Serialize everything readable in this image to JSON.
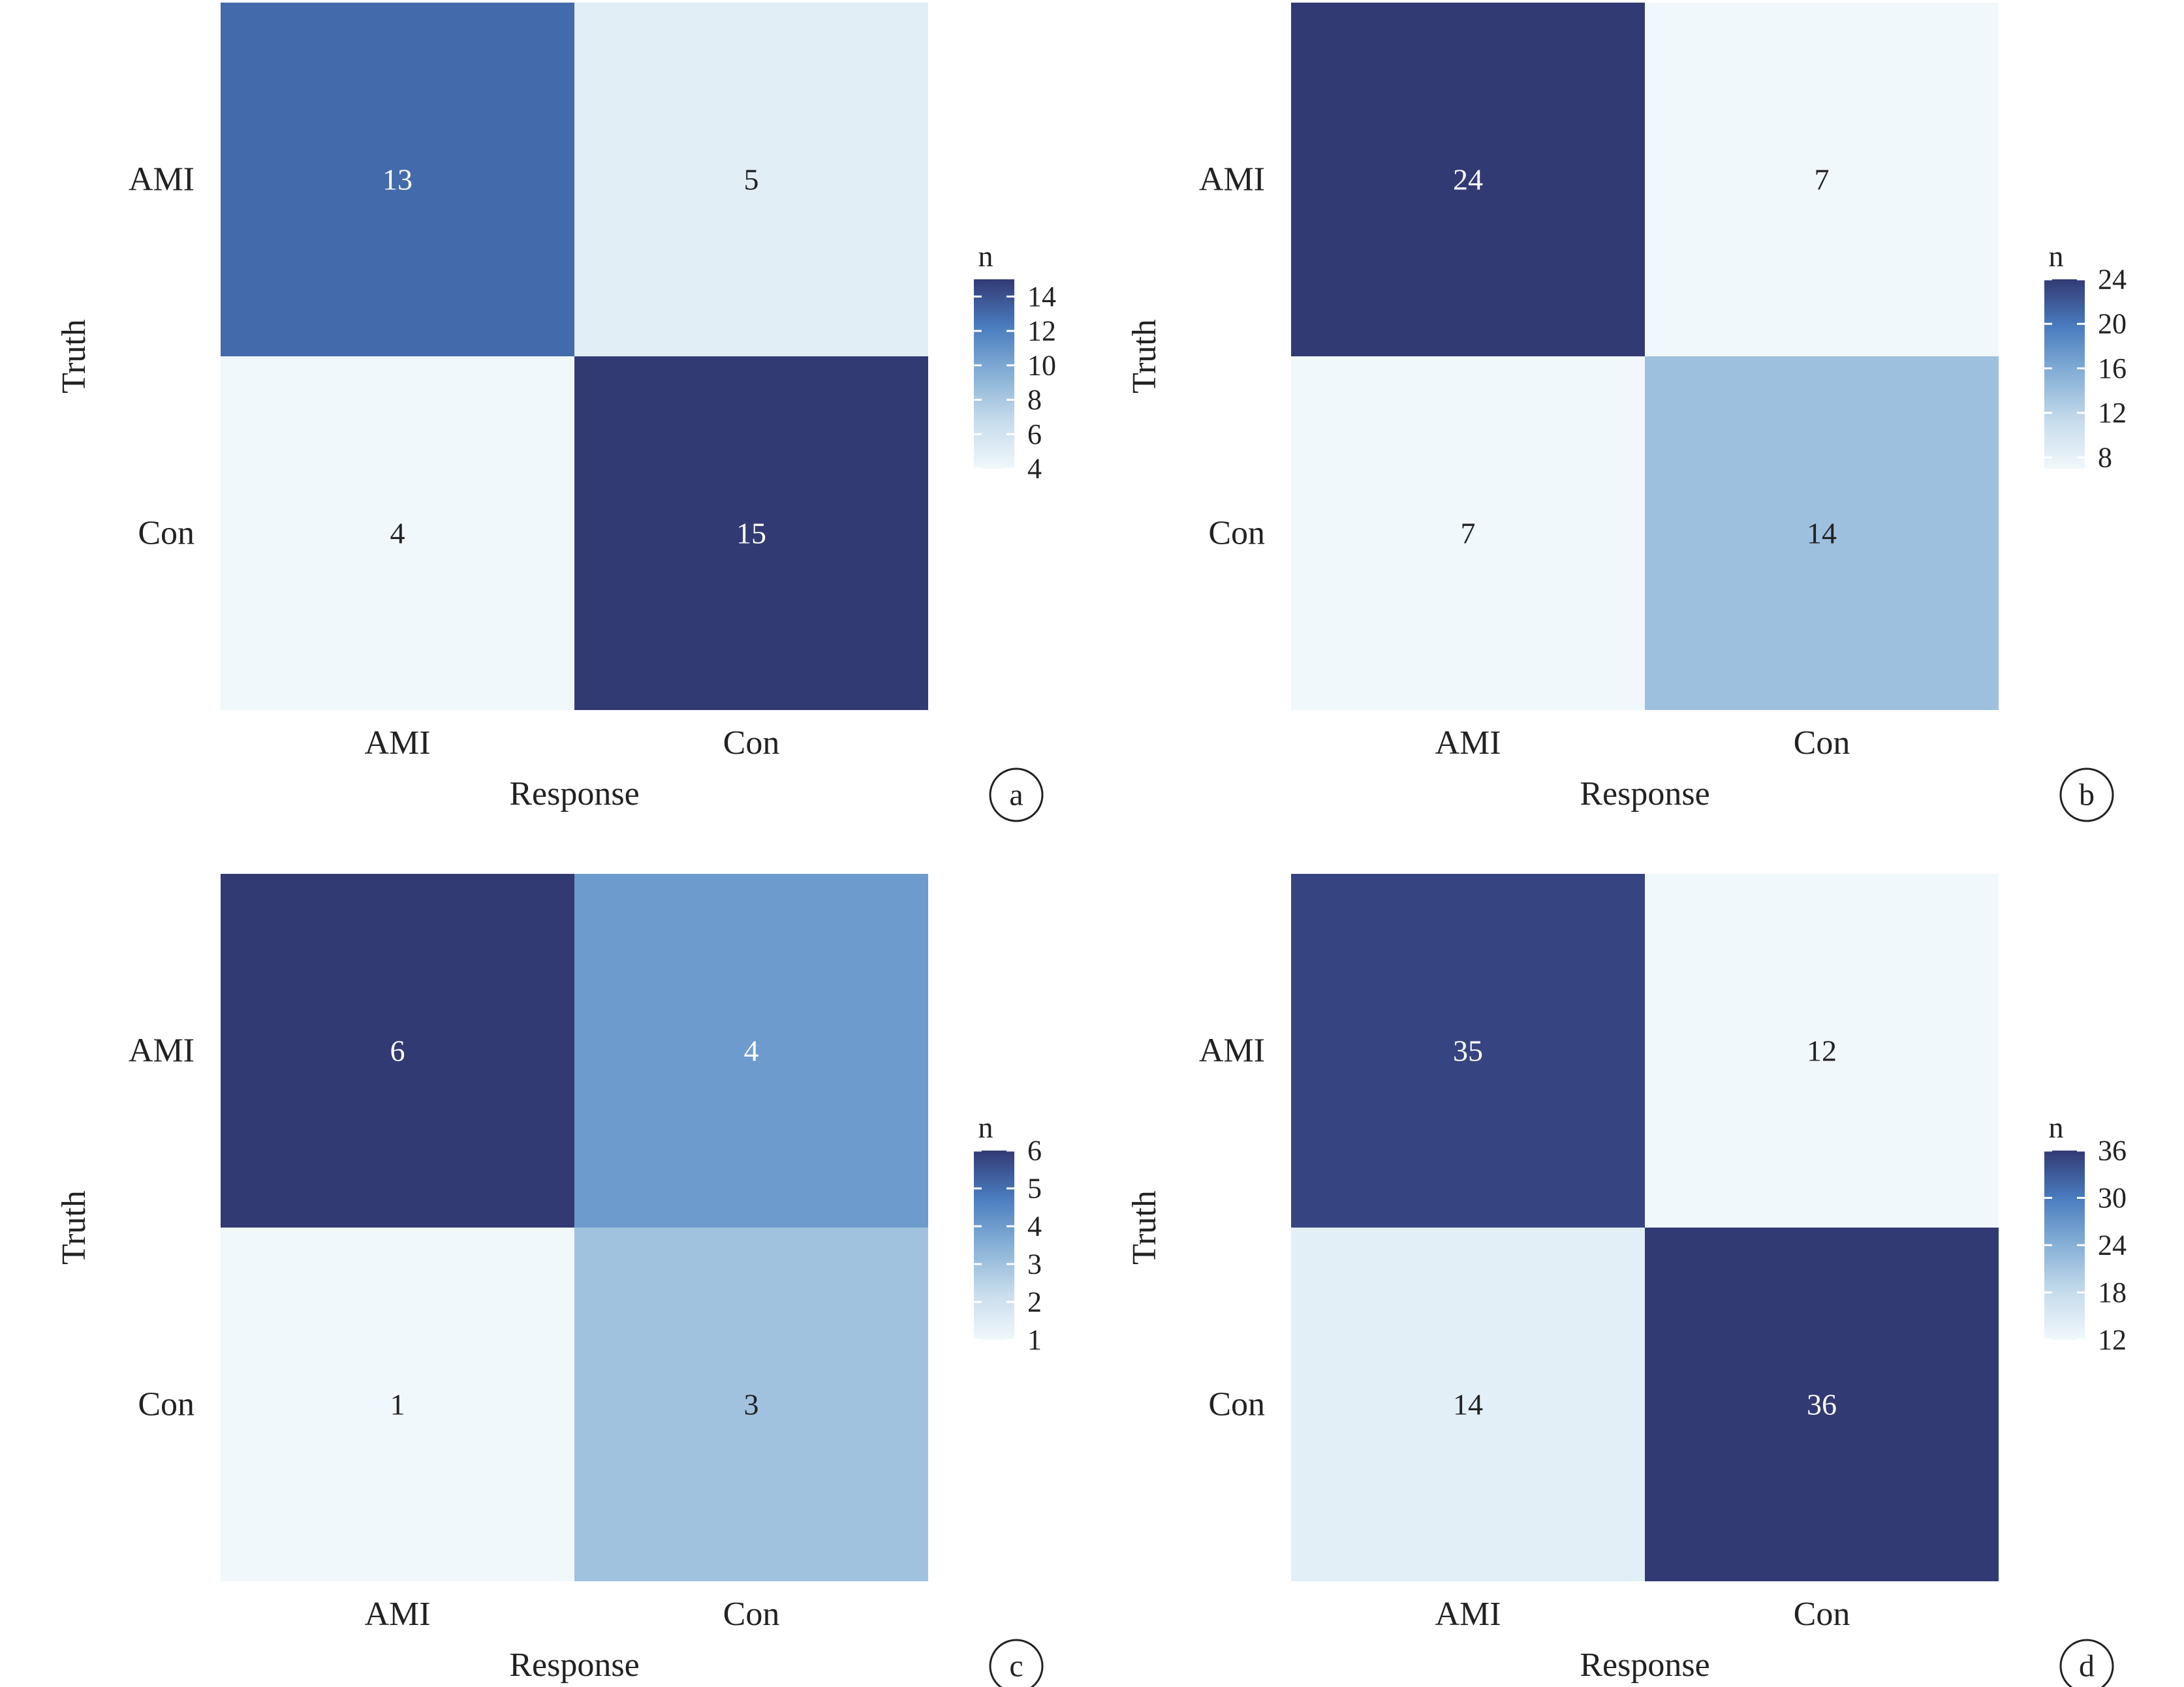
{
  "chart_data": [
    {
      "type": "heatmap",
      "panel_label": "a",
      "x_categories": [
        "AMI",
        "Con"
      ],
      "y_categories": [
        "AMI",
        "Con"
      ],
      "xlabel": "Response",
      "ylabel": "Truth",
      "values": [
        [
          13,
          5
        ],
        [
          4,
          15
        ]
      ],
      "legend": {
        "title": "n",
        "ticks": [
          14,
          12,
          10,
          8,
          6,
          4
        ],
        "range": [
          4,
          15
        ],
        "placement": "right"
      }
    },
    {
      "type": "heatmap",
      "panel_label": "b",
      "x_categories": [
        "AMI",
        "Con"
      ],
      "y_categories": [
        "AMI",
        "Con"
      ],
      "xlabel": "Response",
      "ylabel": "Truth",
      "values": [
        [
          24,
          7
        ],
        [
          7,
          14
        ]
      ],
      "legend": {
        "title": "n",
        "ticks": [
          24,
          20,
          16,
          12,
          8
        ],
        "range": [
          7,
          24
        ],
        "placement": "right"
      }
    },
    {
      "type": "heatmap",
      "panel_label": "c",
      "x_categories": [
        "AMI",
        "Con"
      ],
      "y_categories": [
        "AMI",
        "Con"
      ],
      "xlabel": "Response",
      "ylabel": "Truth",
      "values": [
        [
          6,
          4
        ],
        [
          1,
          3
        ]
      ],
      "legend": {
        "title": "n",
        "ticks": [
          6,
          5,
          4,
          3,
          2,
          1
        ],
        "range": [
          1,
          6
        ],
        "placement": "right"
      }
    },
    {
      "type": "heatmap",
      "panel_label": "d",
      "x_categories": [
        "AMI",
        "Con"
      ],
      "y_categories": [
        "AMI",
        "Con"
      ],
      "xlabel": "Response",
      "ylabel": "Truth",
      "values": [
        [
          35,
          12
        ],
        [
          14,
          36
        ]
      ],
      "legend": {
        "title": "n",
        "ticks": [
          36,
          30,
          24,
          18,
          12
        ],
        "range": [
          12,
          36
        ],
        "placement": "right"
      }
    }
  ],
  "colors": {
    "scale_low": "#f1f8fc",
    "scale_mid_low": "#c6dcec",
    "scale_mid": "#86b0d6",
    "scale_mid_high": "#4a7cbf",
    "scale_high": "#323a74",
    "cell_text_dark": "#222222",
    "cell_text_light": "#ffffff"
  }
}
